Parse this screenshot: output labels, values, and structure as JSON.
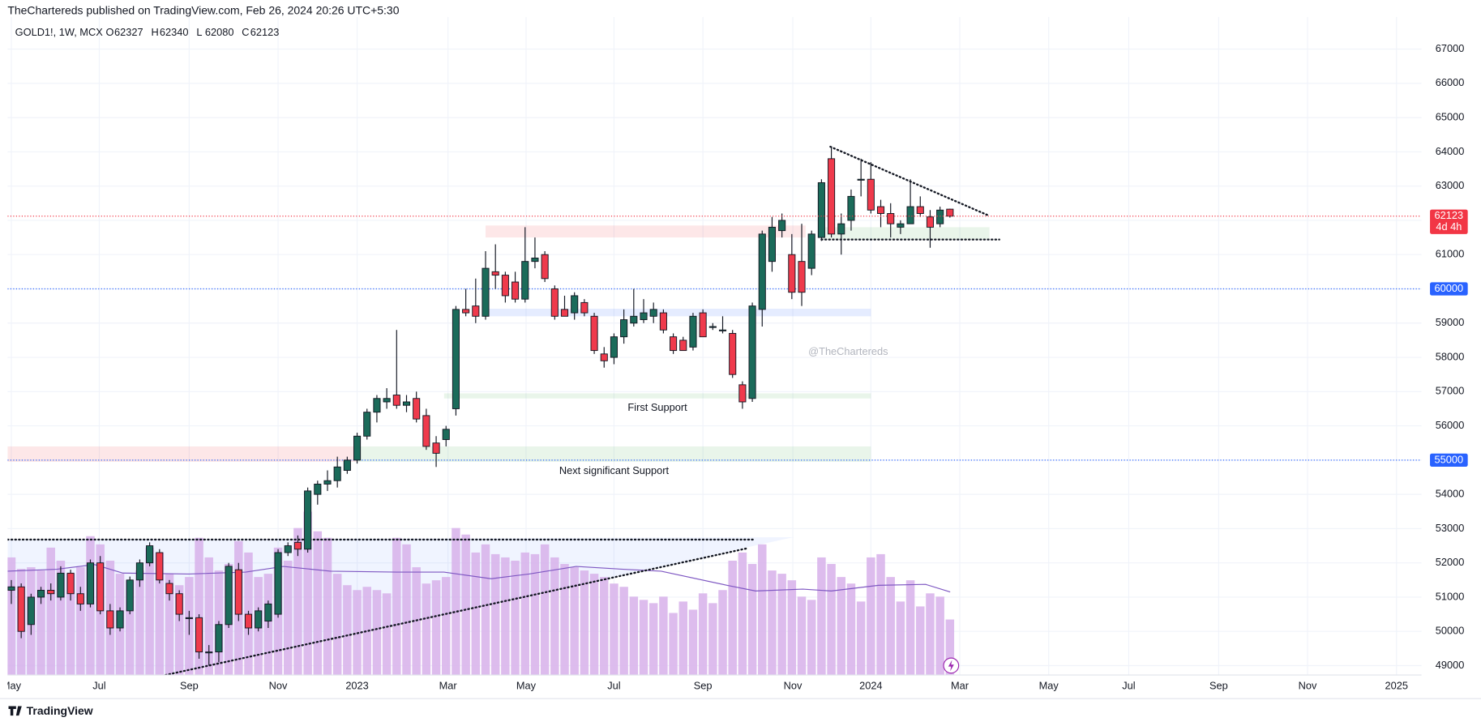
{
  "header": "TheChartereds published on TradingView.com, Feb 26, 2024 20:26 UTC+5:30",
  "brand": "TradingView",
  "chart_data": {
    "type": "candlestick",
    "symbol": "GOLD1!, 1W, MCX",
    "ohlc_labels": [
      "O",
      "H",
      "L",
      "C"
    ],
    "watermark": "@TheChartereds",
    "countdown": "4d 4h",
    "up_color": "#1b6b5a",
    "down_color": "#ef3a4c",
    "volume_color": "#d7b0ea",
    "xlim": [
      -0.38,
      142.73
    ],
    "ylim": [
      48726,
      67937
    ],
    "yticks": [
      49000,
      50000,
      51000,
      52000,
      53000,
      54000,
      55000,
      56000,
      57000,
      58000,
      59000,
      60000,
      61000,
      62000,
      63000,
      64000,
      65000,
      66000,
      67000
    ],
    "xticks": [
      {
        "value": 0,
        "label": "May"
      },
      {
        "value": 8.9,
        "label": "Jul"
      },
      {
        "value": 18,
        "label": "Sep"
      },
      {
        "value": 27,
        "label": "Nov"
      },
      {
        "value": 35,
        "label": "2023"
      },
      {
        "value": 44.2,
        "label": "Mar"
      },
      {
        "value": 52.1,
        "label": "May"
      },
      {
        "value": 61,
        "label": "Jul"
      },
      {
        "value": 70,
        "label": "Sep"
      },
      {
        "value": 79.1,
        "label": "Nov"
      },
      {
        "value": 87,
        "label": "2024"
      },
      {
        "value": 96,
        "label": "Mar"
      },
      {
        "value": 105,
        "label": "May"
      },
      {
        "value": 113.1,
        "label": "Jul"
      },
      {
        "value": 122.2,
        "label": "Sep"
      },
      {
        "value": 131.2,
        "label": "Nov"
      },
      {
        "value": 140.2,
        "label": "2025"
      }
    ],
    "grid": true,
    "open": [
      51200,
      51300,
      50200,
      51000,
      51200,
      51000,
      51700,
      51100,
      50800,
      52000,
      50600,
      50100,
      50600,
      51500,
      52000,
      52300,
      51400,
      51100,
      50400,
      50400,
      49400,
      49400,
      50200,
      51800,
      50500,
      50100,
      50300,
      50500,
      52300,
      52600,
      52400,
      54000,
      54300,
      54400,
      54700,
      55000,
      55700,
      56400,
      56700,
      56900,
      56600,
      56800,
      56300,
      55500,
      55600,
      56500,
      59400,
      59500,
      59200,
      60500,
      60400,
      60200,
      59700,
      60800,
      61000,
      60000,
      59400,
      59300,
      59600,
      59200,
      58100,
      58000,
      58600,
      59000,
      59100,
      59200,
      59300,
      58600,
      58500,
      58300,
      59300,
      58900,
      58800,
      58700,
      57200,
      56800,
      59400,
      60800,
      61700,
      61000,
      60800,
      60600,
      61500,
      63800,
      61600,
      62000,
      63200,
      63200,
      62400,
      62200,
      61800,
      61900,
      62400,
      62100,
      61900,
      62327
    ],
    "high": [
      51500,
      51400,
      51100,
      51300,
      51400,
      51900,
      51800,
      51300,
      52100,
      52200,
      50800,
      50700,
      51600,
      52100,
      52600,
      52400,
      51500,
      51200,
      50600,
      50500,
      49600,
      50300,
      52000,
      52000,
      50600,
      50700,
      50900,
      52400,
      52600,
      52800,
      54200,
      54400,
      54700,
      55100,
      55100,
      55800,
      56500,
      56900,
      57100,
      58800,
      56900,
      57000,
      56500,
      55700,
      56000,
      59500,
      60000,
      60300,
      61100,
      61300,
      60500,
      60500,
      61800,
      61500,
      61100,
      60100,
      59800,
      59900,
      59700,
      59300,
      58300,
      58700,
      59400,
      60000,
      59700,
      59600,
      59400,
      58700,
      58600,
      59300,
      59400,
      59000,
      59200,
      58800,
      57300,
      59600,
      61700,
      62100,
      62200,
      61600,
      61900,
      61700,
      63200,
      64150,
      62200,
      62900,
      63800,
      63700,
      62600,
      62500,
      62000,
      63200,
      62700,
      62300,
      62400,
      62340
    ],
    "low": [
      50800,
      49800,
      49900,
      50800,
      50900,
      50900,
      50900,
      50600,
      50700,
      50500,
      49900,
      50000,
      50500,
      51300,
      51900,
      51400,
      50900,
      50300,
      49900,
      49200,
      49000,
      49100,
      50100,
      50300,
      49900,
      50000,
      50100,
      50400,
      52200,
      52200,
      52300,
      53700,
      54100,
      54200,
      54600,
      54900,
      55600,
      56100,
      56500,
      56500,
      56400,
      56100,
      55300,
      54800,
      55400,
      56300,
      59200,
      59000,
      59100,
      60000,
      59600,
      59600,
      59600,
      60600,
      60200,
      59100,
      59200,
      59100,
      59200,
      58100,
      57700,
      57800,
      58400,
      58900,
      59000,
      59000,
      58700,
      58100,
      58200,
      58200,
      58600,
      58800,
      58700,
      57400,
      56500,
      56700,
      58900,
      60500,
      61500,
      59700,
      59500,
      60400,
      61400,
      61500,
      61000,
      61700,
      62700,
      62200,
      61800,
      61500,
      61600,
      61900,
      62100,
      61200,
      61800,
      62080
    ],
    "close": [
      51300,
      50000,
      51000,
      51200,
      51100,
      51700,
      51100,
      50800,
      52000,
      50600,
      50100,
      50600,
      51500,
      52000,
      52500,
      51500,
      51100,
      50500,
      50400,
      49400,
      49400,
      50200,
      51900,
      50500,
      50100,
      50600,
      50800,
      52300,
      52500,
      52400,
      54100,
      54300,
      54400,
      54800,
      55000,
      55700,
      56400,
      56800,
      56800,
      56600,
      56700,
      56200,
      55400,
      55200,
      55900,
      59400,
      59300,
      59200,
      60600,
      60400,
      59800,
      59700,
      60800,
      60900,
      60300,
      59200,
      59200,
      59800,
      59300,
      58200,
      57900,
      58600,
      59100,
      59200,
      59300,
      59400,
      58800,
      58200,
      58200,
      59200,
      58600,
      58900,
      58800,
      57500,
      56700,
      59500,
      61600,
      61800,
      62000,
      59900,
      59900,
      61600,
      63100,
      61600,
      61900,
      62700,
      63200,
      62300,
      62200,
      61900,
      61900,
      62400,
      62200,
      61800,
      62300,
      62123
    ],
    "volume": [
      72,
      65,
      66,
      64,
      78,
      70,
      62,
      66,
      85,
      80,
      70,
      62,
      58,
      64,
      78,
      75,
      62,
      55,
      60,
      84,
      72,
      64,
      68,
      82,
      75,
      60,
      62,
      78,
      70,
      90,
      100,
      88,
      84,
      62,
      55,
      52,
      54,
      52,
      50,
      84,
      80,
      66,
      56,
      58,
      60,
      90,
      86,
      75,
      80,
      74,
      72,
      70,
      75,
      74,
      80,
      72,
      68,
      66,
      64,
      62,
      60,
      56,
      54,
      48,
      46,
      44,
      48,
      38,
      45,
      40,
      50,
      44,
      52,
      70,
      75,
      68,
      80,
      64,
      62,
      58,
      48,
      46,
      72,
      68,
      60,
      56,
      45,
      72,
      74,
      60,
      45,
      58,
      42,
      50,
      48,
      34
    ],
    "price_lines": [
      {
        "value": 60000,
        "color": "#2962ff"
      },
      {
        "value": 55000,
        "color": "#2962ff"
      }
    ],
    "zones": [
      {
        "from": 48,
        "to": 80.4,
        "low": 61500,
        "high": 61850,
        "color": "#f23645"
      },
      {
        "from": 82,
        "to": 99,
        "low": 61450,
        "high": 61800,
        "color": "#4caf50"
      },
      {
        "from": 48,
        "to": 87,
        "low": 59200,
        "high": 59420,
        "color": "#2962ff"
      },
      {
        "from": 43.8,
        "to": 87,
        "low": 56800,
        "high": 56950,
        "color": "#4caf50",
        "label": "First Support"
      },
      {
        "from": 35,
        "to": 87,
        "low": 54950,
        "high": 55400,
        "color": "#4caf50",
        "label": "Next significant Support"
      },
      {
        "from": -0.38,
        "to": 35,
        "low": 54950,
        "high": 55400,
        "color": "#f23645"
      }
    ],
    "trendlines": [
      {
        "x1": -0.38,
        "y1": 52680,
        "x2": 75.3,
        "y2": 52680
      },
      {
        "x1": 15.6,
        "y1": 48726,
        "x2": 74.4,
        "y2": 52420
      },
      {
        "x1": 82.9,
        "y1": 64150,
        "x2": 99,
        "y2": 62130
      },
      {
        "x1": 82,
        "y1": 61440,
        "x2": 100,
        "y2": 61440
      }
    ]
  }
}
